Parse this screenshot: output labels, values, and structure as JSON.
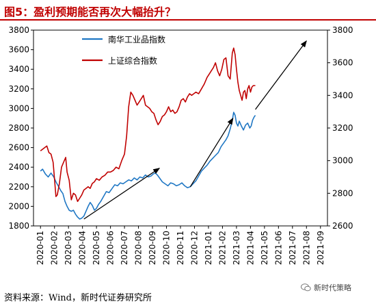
{
  "title": "图5：盈利预期能否再次大幅抬升？",
  "source": "资料来源：Wind，新时代证券研究所",
  "watermark": "新时代策略",
  "chart_data": {
    "type": "line",
    "x": [
      "2020-01",
      "2020-02",
      "2020-03",
      "2020-04",
      "2020-05",
      "2020-06",
      "2020-07",
      "2020-08",
      "2020-09",
      "2020-10",
      "2020-11",
      "2020-12",
      "2021-01",
      "2021-02",
      "2021-03",
      "2021-04",
      "2021-05",
      "2021-06",
      "2021-07",
      "2021-08",
      "2021-09"
    ],
    "ylim_left": [
      1800,
      3800
    ],
    "yticks_left": [
      1800,
      2000,
      2200,
      2400,
      2600,
      2800,
      3000,
      3200,
      3400,
      3600,
      3800
    ],
    "ylim_right": [
      2600,
      3800
    ],
    "yticks_right": [
      2600,
      2800,
      3000,
      3200,
      3400,
      3600,
      3800
    ],
    "grid": false,
    "legend_position": "top-left",
    "series": [
      {
        "name": "南华工业品指数",
        "axis": "left",
        "color": "#1f77c4",
        "points": [
          [
            0.0,
            2360
          ],
          [
            0.15,
            2380
          ],
          [
            0.35,
            2330
          ],
          [
            0.55,
            2300
          ],
          [
            0.75,
            2340
          ],
          [
            0.95,
            2300
          ],
          [
            1.1,
            2250
          ],
          [
            1.3,
            2200
          ],
          [
            1.45,
            2160
          ],
          [
            1.6,
            2130
          ],
          [
            1.75,
            2050
          ],
          [
            1.9,
            2000
          ],
          [
            2.05,
            1960
          ],
          [
            2.2,
            1950
          ],
          [
            2.35,
            1960
          ],
          [
            2.5,
            1920
          ],
          [
            2.65,
            1890
          ],
          [
            2.8,
            1870
          ],
          [
            2.95,
            1880
          ],
          [
            3.1,
            1900
          ],
          [
            3.25,
            1950
          ],
          [
            3.4,
            2000
          ],
          [
            3.55,
            2040
          ],
          [
            3.7,
            2010
          ],
          [
            3.85,
            1960
          ],
          [
            4.0,
            1980
          ],
          [
            4.15,
            2020
          ],
          [
            4.3,
            2050
          ],
          [
            4.5,
            2100
          ],
          [
            4.7,
            2150
          ],
          [
            4.9,
            2140
          ],
          [
            5.1,
            2180
          ],
          [
            5.3,
            2220
          ],
          [
            5.5,
            2210
          ],
          [
            5.7,
            2240
          ],
          [
            5.9,
            2230
          ],
          [
            6.1,
            2250
          ],
          [
            6.3,
            2270
          ],
          [
            6.5,
            2260
          ],
          [
            6.7,
            2290
          ],
          [
            6.9,
            2270
          ],
          [
            7.1,
            2300
          ],
          [
            7.3,
            2290
          ],
          [
            7.5,
            2320
          ],
          [
            7.7,
            2300
          ],
          [
            7.9,
            2310
          ],
          [
            8.05,
            2330
          ],
          [
            8.2,
            2340
          ],
          [
            8.35,
            2320
          ],
          [
            8.5,
            2290
          ],
          [
            8.7,
            2250
          ],
          [
            8.9,
            2230
          ],
          [
            9.1,
            2210
          ],
          [
            9.3,
            2240
          ],
          [
            9.5,
            2230
          ],
          [
            9.7,
            2210
          ],
          [
            9.9,
            2220
          ],
          [
            10.1,
            2240
          ],
          [
            10.3,
            2210
          ],
          [
            10.5,
            2190
          ],
          [
            10.7,
            2200
          ],
          [
            10.9,
            2230
          ],
          [
            11.1,
            2260
          ],
          [
            11.3,
            2310
          ],
          [
            11.5,
            2360
          ],
          [
            11.7,
            2390
          ],
          [
            11.9,
            2420
          ],
          [
            12.1,
            2460
          ],
          [
            12.3,
            2490
          ],
          [
            12.5,
            2520
          ],
          [
            12.7,
            2550
          ],
          [
            12.9,
            2610
          ],
          [
            13.1,
            2650
          ],
          [
            13.25,
            2680
          ],
          [
            13.4,
            2720
          ],
          [
            13.55,
            2790
          ],
          [
            13.7,
            2880
          ],
          [
            13.8,
            2960
          ],
          [
            13.9,
            2930
          ],
          [
            14.0,
            2850
          ],
          [
            14.1,
            2820
          ],
          [
            14.2,
            2870
          ],
          [
            14.35,
            2820
          ],
          [
            14.5,
            2780
          ],
          [
            14.65,
            2830
          ],
          [
            14.8,
            2850
          ],
          [
            14.95,
            2800
          ],
          [
            15.05,
            2820
          ],
          [
            15.15,
            2880
          ],
          [
            15.25,
            2910
          ],
          [
            15.35,
            2930
          ]
        ]
      },
      {
        "name": "上证综合指数",
        "axis": "right",
        "color": "#c00000",
        "points": [
          [
            0.0,
            3060
          ],
          [
            0.15,
            3070
          ],
          [
            0.3,
            3080
          ],
          [
            0.45,
            3090
          ],
          [
            0.6,
            3050
          ],
          [
            0.75,
            3040
          ],
          [
            0.9,
            2990
          ],
          [
            1.0,
            2890
          ],
          [
            1.1,
            2780
          ],
          [
            1.2,
            2790
          ],
          [
            1.35,
            2860
          ],
          [
            1.5,
            2960
          ],
          [
            1.65,
            2990
          ],
          [
            1.8,
            3020
          ],
          [
            1.9,
            2930
          ],
          [
            2.05,
            2880
          ],
          [
            2.2,
            2760
          ],
          [
            2.35,
            2800
          ],
          [
            2.5,
            2790
          ],
          [
            2.65,
            2750
          ],
          [
            2.8,
            2770
          ],
          [
            2.95,
            2790
          ],
          [
            3.1,
            2820
          ],
          [
            3.25,
            2830
          ],
          [
            3.4,
            2840
          ],
          [
            3.55,
            2830
          ],
          [
            3.7,
            2860
          ],
          [
            3.85,
            2870
          ],
          [
            4.0,
            2890
          ],
          [
            4.2,
            2880
          ],
          [
            4.4,
            2900
          ],
          [
            4.6,
            2910
          ],
          [
            4.8,
            2930
          ],
          [
            5.0,
            2930
          ],
          [
            5.2,
            2940
          ],
          [
            5.4,
            2960
          ],
          [
            5.6,
            2950
          ],
          [
            5.8,
            3000
          ],
          [
            6.0,
            3040
          ],
          [
            6.15,
            3150
          ],
          [
            6.3,
            3330
          ],
          [
            6.45,
            3420
          ],
          [
            6.6,
            3400
          ],
          [
            6.75,
            3370
          ],
          [
            6.9,
            3340
          ],
          [
            7.05,
            3360
          ],
          [
            7.2,
            3380
          ],
          [
            7.35,
            3400
          ],
          [
            7.5,
            3340
          ],
          [
            7.65,
            3330
          ],
          [
            7.8,
            3320
          ],
          [
            7.95,
            3300
          ],
          [
            8.1,
            3290
          ],
          [
            8.25,
            3250
          ],
          [
            8.4,
            3220
          ],
          [
            8.55,
            3240
          ],
          [
            8.7,
            3270
          ],
          [
            8.85,
            3280
          ],
          [
            9.0,
            3300
          ],
          [
            9.15,
            3330
          ],
          [
            9.3,
            3300
          ],
          [
            9.45,
            3310
          ],
          [
            9.6,
            3290
          ],
          [
            9.75,
            3300
          ],
          [
            9.9,
            3330
          ],
          [
            10.05,
            3370
          ],
          [
            10.2,
            3380
          ],
          [
            10.35,
            3360
          ],
          [
            10.5,
            3390
          ],
          [
            10.65,
            3410
          ],
          [
            10.8,
            3400
          ],
          [
            10.95,
            3410
          ],
          [
            11.1,
            3420
          ],
          [
            11.3,
            3410
          ],
          [
            11.5,
            3440
          ],
          [
            11.7,
            3470
          ],
          [
            11.9,
            3510
          ],
          [
            12.05,
            3530
          ],
          [
            12.2,
            3550
          ],
          [
            12.35,
            3570
          ],
          [
            12.5,
            3600
          ],
          [
            12.65,
            3550
          ],
          [
            12.8,
            3520
          ],
          [
            12.95,
            3560
          ],
          [
            13.1,
            3620
          ],
          [
            13.25,
            3630
          ],
          [
            13.4,
            3520
          ],
          [
            13.55,
            3500
          ],
          [
            13.7,
            3660
          ],
          [
            13.8,
            3690
          ],
          [
            13.9,
            3650
          ],
          [
            14.0,
            3560
          ],
          [
            14.1,
            3480
          ],
          [
            14.2,
            3430
          ],
          [
            14.3,
            3400
          ],
          [
            14.4,
            3370
          ],
          [
            14.5,
            3420
          ],
          [
            14.6,
            3430
          ],
          [
            14.7,
            3380
          ],
          [
            14.8,
            3440
          ],
          [
            14.9,
            3460
          ],
          [
            15.0,
            3420
          ],
          [
            15.1,
            3450
          ],
          [
            15.2,
            3460
          ],
          [
            15.35,
            3460
          ]
        ]
      }
    ],
    "arrows": [
      {
        "from": [
          3.1,
          1870
        ],
        "to": [
          8.5,
          2390
        ],
        "axis": "left"
      },
      {
        "from": [
          10.7,
          2200
        ],
        "to": [
          13.75,
          2900
        ],
        "axis": "left"
      },
      {
        "from": [
          15.35,
          2990
        ],
        "to": [
          19.0,
          3690
        ],
        "axis": "left"
      }
    ]
  }
}
